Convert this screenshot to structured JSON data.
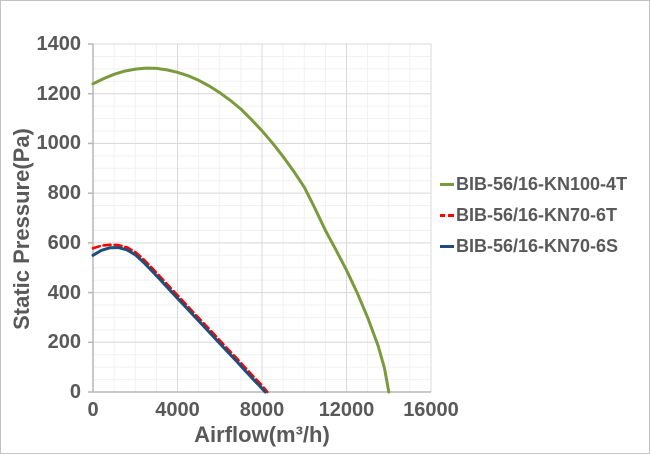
{
  "chart_data": {
    "type": "line",
    "title": "",
    "xlabel": "Airflow(m³/h)",
    "ylabel": "Static Pressure(Pa)",
    "xlim": [
      0,
      16000
    ],
    "ylim": [
      0,
      1400
    ],
    "x_ticks": [
      0,
      4000,
      8000,
      12000,
      16000
    ],
    "y_ticks": [
      0,
      200,
      400,
      600,
      800,
      1000,
      1200,
      1400
    ],
    "x_minor_step": 1000,
    "y_minor_step": 50,
    "grid": "major and minor gridlines on",
    "legend_position": "right-middle",
    "colors": {
      "text": "#595959",
      "axis_line": "#b7b7b7",
      "grid_major": "#d9d9d9",
      "grid_minor": "#f1f1f1",
      "series_green": "#7a9a3c",
      "series_red": "#ff0000",
      "series_blue": "#1f4e79"
    },
    "series": [
      {
        "name": "BIB-56/16-KN100-4T",
        "color": "#7a9a3c",
        "style": "solid",
        "points": [
          [
            0,
            1240
          ],
          [
            500,
            1261
          ],
          [
            1000,
            1278
          ],
          [
            1500,
            1291
          ],
          [
            2000,
            1299
          ],
          [
            2500,
            1303
          ],
          [
            3000,
            1302
          ],
          [
            3500,
            1296
          ],
          [
            4000,
            1286
          ],
          [
            4500,
            1272
          ],
          [
            5000,
            1254
          ],
          [
            5500,
            1231
          ],
          [
            6000,
            1204
          ],
          [
            6500,
            1173
          ],
          [
            7000,
            1138
          ],
          [
            7500,
            1096
          ],
          [
            8000,
            1051
          ],
          [
            8500,
            1001
          ],
          [
            9000,
            947
          ],
          [
            9500,
            888
          ],
          [
            10000,
            824
          ],
          [
            10500,
            740
          ],
          [
            11000,
            650
          ],
          [
            11500,
            572
          ],
          [
            12000,
            490
          ],
          [
            12500,
            400
          ],
          [
            13000,
            300
          ],
          [
            13500,
            185
          ],
          [
            13800,
            95
          ],
          [
            14000,
            0
          ]
        ]
      },
      {
        "name": "BIB-56/16-KN70-6T",
        "color": "#ff0000",
        "style": "dashed",
        "points": [
          [
            0,
            578
          ],
          [
            400,
            589
          ],
          [
            800,
            592
          ],
          [
            1200,
            591
          ],
          [
            1600,
            582
          ],
          [
            2000,
            563
          ],
          [
            2400,
            533
          ],
          [
            2800,
            498
          ],
          [
            3200,
            462
          ],
          [
            3600,
            425
          ],
          [
            4000,
            389
          ],
          [
            4400,
            353
          ],
          [
            4800,
            316
          ],
          [
            5200,
            280
          ],
          [
            5600,
            244
          ],
          [
            6000,
            207
          ],
          [
            6400,
            171
          ],
          [
            6800,
            135
          ],
          [
            7200,
            98
          ],
          [
            7600,
            62
          ],
          [
            8000,
            26
          ],
          [
            8250,
            0
          ]
        ]
      },
      {
        "name": "BIB-56/16-KN70-6S",
        "color": "#1f4e79",
        "style": "solid",
        "points": [
          [
            0,
            550
          ],
          [
            400,
            570
          ],
          [
            800,
            580
          ],
          [
            1200,
            581
          ],
          [
            1600,
            572
          ],
          [
            2000,
            552
          ],
          [
            2400,
            521
          ],
          [
            2800,
            486
          ],
          [
            3200,
            450
          ],
          [
            3600,
            413
          ],
          [
            4000,
            377
          ],
          [
            4400,
            341
          ],
          [
            4800,
            304
          ],
          [
            5200,
            268
          ],
          [
            5600,
            232
          ],
          [
            6000,
            195
          ],
          [
            6400,
            159
          ],
          [
            6800,
            123
          ],
          [
            7200,
            86
          ],
          [
            7600,
            50
          ],
          [
            8000,
            14
          ],
          [
            8150,
            0
          ]
        ]
      }
    ]
  }
}
